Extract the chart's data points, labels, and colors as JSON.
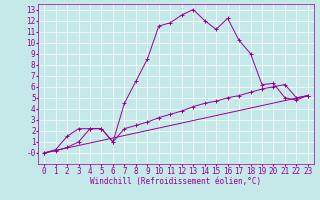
{
  "xlabel": "Windchill (Refroidissement éolien,°C)",
  "bg_color": "#c5e8e8",
  "line_color": "#990099",
  "grid_color": "#ffffff",
  "xlim": [
    -0.5,
    23.5
  ],
  "ylim": [
    -1.0,
    13.5
  ],
  "xticks": [
    0,
    1,
    2,
    3,
    4,
    5,
    6,
    7,
    8,
    9,
    10,
    11,
    12,
    13,
    14,
    15,
    16,
    17,
    18,
    19,
    20,
    21,
    22,
    23
  ],
  "yticks": [
    0,
    1,
    2,
    3,
    4,
    5,
    6,
    7,
    8,
    9,
    10,
    11,
    12,
    13
  ],
  "ytick_labels": [
    "-0",
    "1",
    "2",
    "3",
    "4",
    "5",
    "6",
    "7",
    "8",
    "9",
    "10",
    "11",
    "12",
    "13"
  ],
  "line1_x": [
    0,
    1,
    2,
    3,
    4,
    5,
    6,
    7,
    8,
    9,
    10,
    11,
    12,
    13,
    14,
    15,
    16,
    17,
    18,
    19,
    20,
    21,
    22,
    23
  ],
  "line1_y": [
    0,
    0.3,
    1.5,
    2.2,
    2.2,
    2.2,
    1.0,
    4.5,
    6.5,
    8.5,
    11.5,
    11.8,
    12.5,
    13.0,
    12.0,
    11.2,
    12.2,
    10.2,
    9.0,
    6.2,
    6.3,
    5.0,
    4.8,
    5.2
  ],
  "line2_x": [
    0,
    1,
    2,
    3,
    4,
    5,
    6,
    7,
    8,
    9,
    10,
    11,
    12,
    13,
    14,
    15,
    16,
    17,
    18,
    19,
    20,
    21,
    22,
    23
  ],
  "line2_y": [
    0,
    0.2,
    0.5,
    1.0,
    2.2,
    2.2,
    1.0,
    2.2,
    2.5,
    2.8,
    3.2,
    3.5,
    3.8,
    4.2,
    4.5,
    4.7,
    5.0,
    5.2,
    5.5,
    5.8,
    6.0,
    6.2,
    5.0,
    5.2
  ],
  "line3_x": [
    0,
    23
  ],
  "line3_y": [
    0,
    5.2
  ],
  "tick_fontsize": 5.5,
  "xlabel_fontsize": 5.5
}
